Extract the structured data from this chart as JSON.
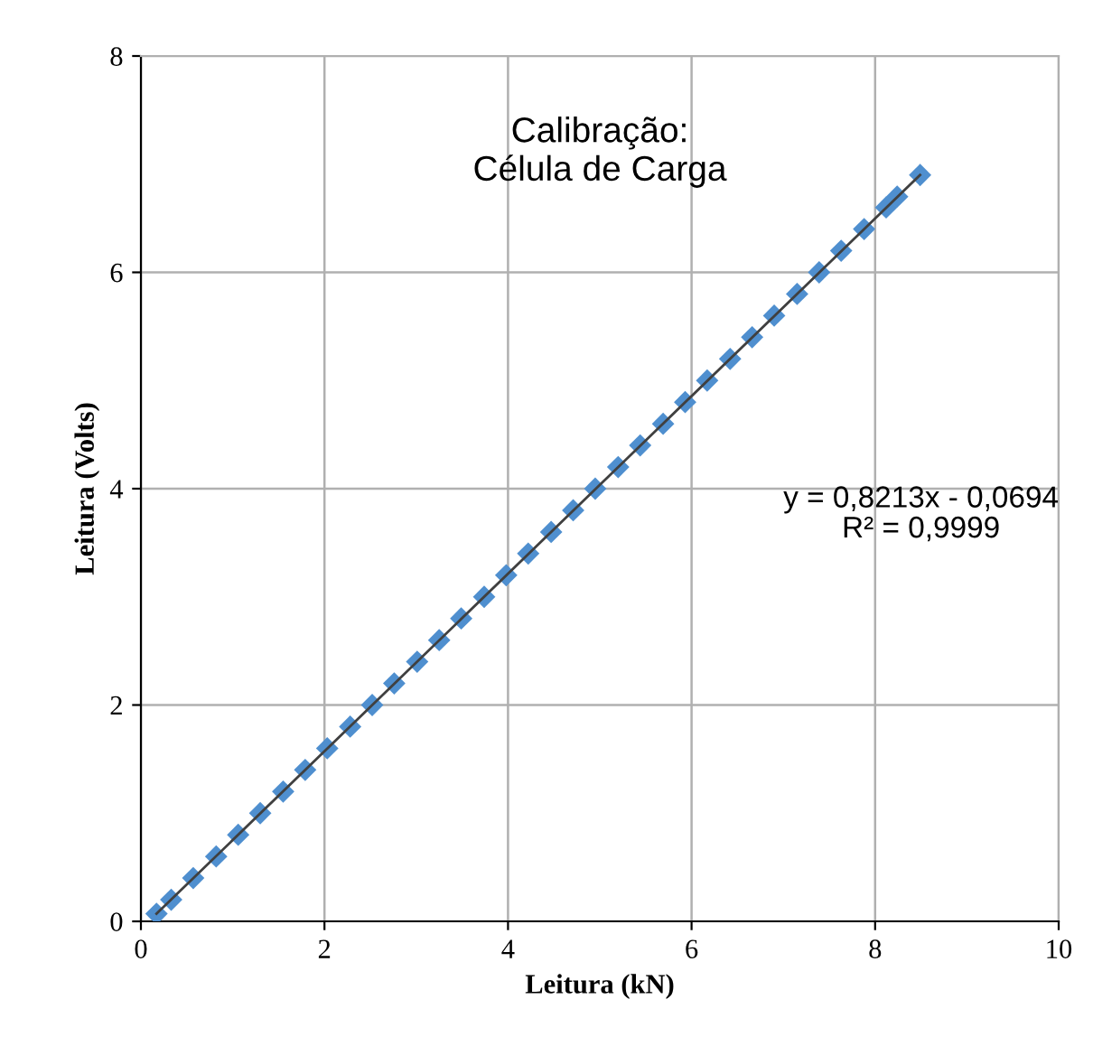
{
  "chart_data": {
    "type": "scatter",
    "title": "Calibração:\nCélula de Carga",
    "xlabel": "Leitura (kN)",
    "ylabel": "Leitura (Volts)",
    "series": [
      {
        "color": "#4f8fcf",
        "marker": "diamond",
        "x": [
          0.17,
          0.33,
          0.57,
          0.82,
          1.06,
          1.3,
          1.55,
          1.79,
          2.03,
          2.28,
          2.52,
          2.76,
          3.01,
          3.25,
          3.49,
          3.74,
          3.98,
          4.22,
          4.47,
          4.71,
          4.95,
          5.2,
          5.44,
          5.69,
          5.93,
          6.17,
          6.42,
          6.66,
          6.9,
          7.15,
          7.39,
          7.63,
          7.88,
          8.12,
          8.24,
          8.49
        ],
        "values": [
          0.07,
          0.2,
          0.4,
          0.6,
          0.8,
          1.0,
          1.2,
          1.4,
          1.6,
          1.8,
          2.0,
          2.2,
          2.4,
          2.6,
          2.8,
          3.0,
          3.2,
          3.4,
          3.6,
          3.8,
          4.0,
          4.2,
          4.4,
          4.6,
          4.8,
          5.0,
          5.2,
          5.4,
          5.6,
          5.8,
          6.0,
          6.2,
          6.4,
          6.6,
          6.7,
          6.9
        ]
      },
      {
        "type": "line",
        "color": "#404040",
        "x": [
          0.17,
          8.49
        ],
        "values": [
          0.07,
          6.9
        ]
      }
    ],
    "annotations": [
      "y = 0,8213x - 0,0694\nR² = 0,9999"
    ],
    "xlim": [
      0,
      10
    ],
    "xticks": [
      0,
      2,
      4,
      6,
      8,
      10
    ],
    "ylim": [
      0,
      8
    ],
    "yticks": [
      0,
      2,
      4,
      6,
      8
    ],
    "grid": true
  }
}
